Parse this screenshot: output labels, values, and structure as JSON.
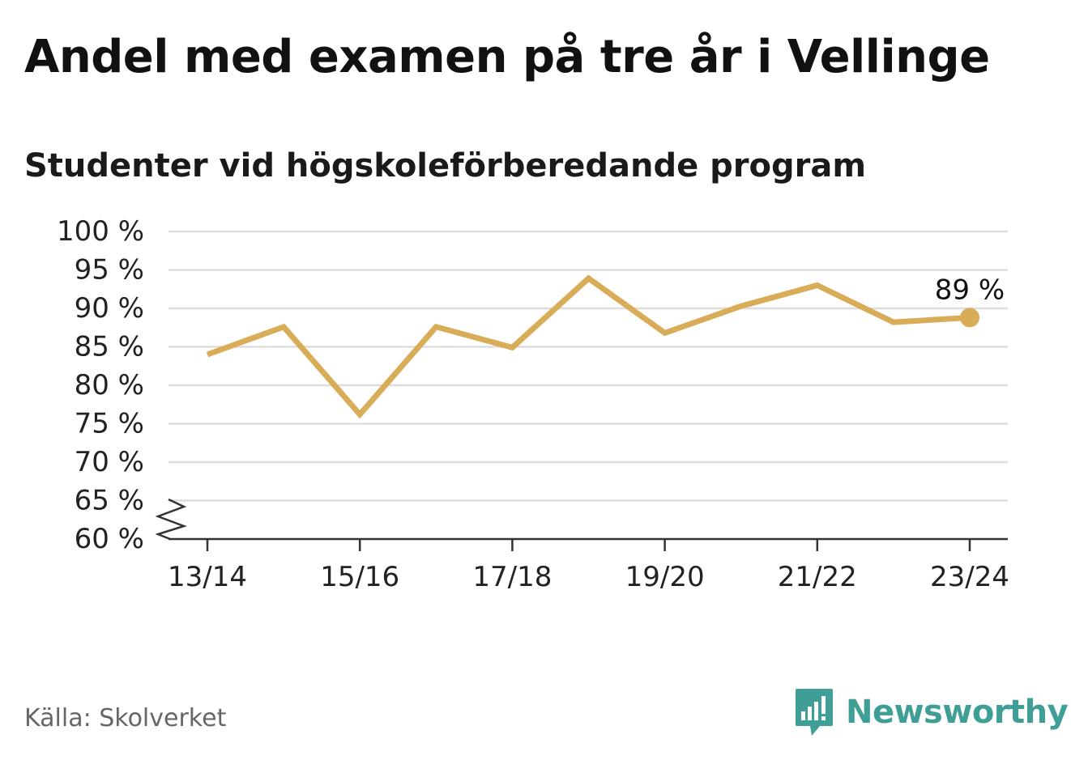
{
  "title": "Andel med examen på tre år i Vellinge",
  "subtitle": "Studenter vid högskoleförberedande program",
  "source": "Källa: Skolverket",
  "brand": "Newsworthy",
  "colors": {
    "line": "#d9ac58",
    "grid": "#dddddd",
    "axis": "#333333",
    "brand": "#3f9e95",
    "source": "#666666"
  },
  "chart_data": {
    "type": "line",
    "title": "Andel med examen på tre år i Vellinge",
    "subtitle": "Studenter vid högskoleförberedande program",
    "x": [
      "13/14",
      "14/15",
      "15/16",
      "16/17",
      "17/18",
      "18/19",
      "19/20",
      "20/21",
      "21/22",
      "22/23",
      "23/24"
    ],
    "x_tick_labels": [
      "13/14",
      "15/16",
      "17/18",
      "19/20",
      "21/22",
      "23/24"
    ],
    "series": [
      {
        "values": [
          84.0,
          87.6,
          76.2,
          87.6,
          84.9,
          93.9,
          86.8,
          90.3,
          93.0,
          88.2,
          88.8
        ]
      }
    ],
    "ylim": [
      60,
      100
    ],
    "y_ticks": [
      60,
      65,
      70,
      75,
      80,
      85,
      90,
      95,
      100
    ],
    "y_tick_labels": [
      "60 %",
      "65 %",
      "70 %",
      "75 %",
      "80 %",
      "85 %",
      "90 %",
      "95 %",
      "100 %"
    ],
    "y_axis_break": true,
    "grid": true,
    "last_value_label": "89 %",
    "xlabel": "",
    "ylabel": ""
  }
}
